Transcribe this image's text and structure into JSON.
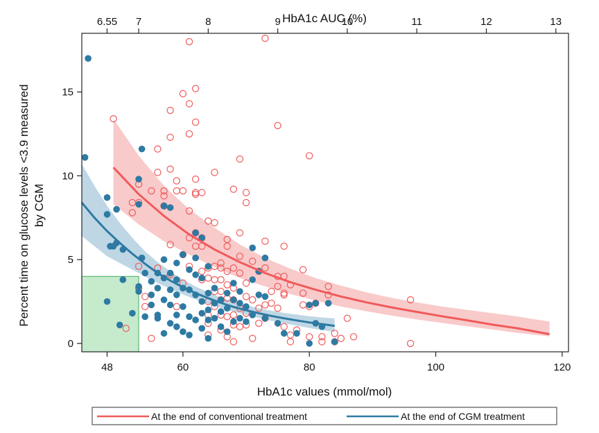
{
  "chart_data": {
    "type": "scatter",
    "title": "",
    "xlabel": "HbA1c values (mmol/mol)",
    "ylabel": [
      "Percent time on glucose levels <3.9 measured",
      "by CGM"
    ],
    "top_xlabel": "HbA1c AUC (%)",
    "xlim": [
      44,
      121
    ],
    "ylim": [
      -0.5,
      18.5
    ],
    "xticks": [
      48,
      60,
      80,
      100,
      120
    ],
    "yticks": [
      0,
      5,
      10,
      15
    ],
    "top_ticks": [
      {
        "label": "6.55",
        "x": 48
      },
      {
        "label": "7",
        "x": 53
      },
      {
        "label": "8",
        "x": 64
      },
      {
        "label": "9",
        "x": 75
      },
      {
        "label": "10",
        "x": 86
      },
      {
        "label": "11",
        "x": 97
      },
      {
        "label": "12",
        "x": 108
      },
      {
        "label": "13",
        "x": 119
      }
    ],
    "target_region": {
      "x": [
        44,
        53
      ],
      "y": [
        -0.5,
        4
      ],
      "color": "#9fdcaa"
    },
    "colors": {
      "conventional": "#f05a5a",
      "cgm": "#2e7aa3",
      "conventional_band": "#f5b8b8",
      "cgm_band": "#a9c9dc"
    },
    "series": [
      {
        "name": "At the end of conventional treatment",
        "marker": "open-circle",
        "fit": {
          "x": [
            49,
            53,
            57,
            61,
            65,
            69,
            73,
            77,
            81,
            85,
            89,
            93,
            97,
            101,
            105,
            109,
            113,
            118
          ],
          "y": [
            10.5,
            8.9,
            7.6,
            6.5,
            5.6,
            4.85,
            4.2,
            3.65,
            3.2,
            2.8,
            2.45,
            2.15,
            1.88,
            1.62,
            1.38,
            1.12,
            0.9,
            0.55
          ]
        },
        "band_upper": [
          13.4,
          11.2,
          9.4,
          8.0,
          6.9,
          5.9,
          5.1,
          4.45,
          3.9,
          3.45,
          3.05,
          2.72,
          2.45,
          2.2,
          2.0,
          1.8,
          1.6,
          1.3
        ],
        "band_lower": [
          8.3,
          7.1,
          6.1,
          5.3,
          4.55,
          3.9,
          3.4,
          2.95,
          2.55,
          2.2,
          1.92,
          1.66,
          1.43,
          1.22,
          1.02,
          0.83,
          0.62,
          0.42
        ],
        "points": [
          [
            49,
            13.4
          ],
          [
            51,
            0.9
          ],
          [
            52,
            7.8
          ],
          [
            52,
            8.4
          ],
          [
            53,
            9.5
          ],
          [
            53,
            8.4
          ],
          [
            53,
            4.6
          ],
          [
            53,
            3.3
          ],
          [
            54,
            2.8
          ],
          [
            54,
            2.2
          ],
          [
            55,
            9.1
          ],
          [
            55,
            0.3
          ],
          [
            56,
            11.6
          ],
          [
            56,
            10.2
          ],
          [
            56,
            4.5
          ],
          [
            57,
            8.8
          ],
          [
            57,
            9.1
          ],
          [
            57,
            8.2
          ],
          [
            58,
            13.9
          ],
          [
            58,
            12.3
          ],
          [
            58,
            10.4
          ],
          [
            58,
            5.9
          ],
          [
            58,
            4.1
          ],
          [
            59,
            9.7
          ],
          [
            59,
            9.1
          ],
          [
            59,
            2.2
          ],
          [
            60,
            14.9
          ],
          [
            60,
            9.1
          ],
          [
            60,
            5.3
          ],
          [
            60,
            3.6
          ],
          [
            61,
            18.0
          ],
          [
            61,
            14.3
          ],
          [
            61,
            12.5
          ],
          [
            61,
            7.9
          ],
          [
            61,
            6.3
          ],
          [
            61,
            4.6
          ],
          [
            62,
            15.2
          ],
          [
            62,
            13.2
          ],
          [
            62,
            9.8
          ],
          [
            62,
            9.0
          ],
          [
            62,
            8.9
          ],
          [
            62,
            6.6
          ],
          [
            62,
            5.8
          ],
          [
            63,
            9.0
          ],
          [
            63,
            6.3
          ],
          [
            63,
            5.8
          ],
          [
            63,
            4.3
          ],
          [
            63,
            3.8
          ],
          [
            64,
            7.3
          ],
          [
            64,
            4.5
          ],
          [
            64,
            3.9
          ],
          [
            64,
            2.5
          ],
          [
            64,
            1.7
          ],
          [
            64,
            1.2
          ],
          [
            64,
            0.5
          ],
          [
            65,
            10.2
          ],
          [
            65,
            7.2
          ],
          [
            65,
            4.6
          ],
          [
            65,
            3.8
          ],
          [
            65,
            3.1
          ],
          [
            65,
            2.2
          ],
          [
            66,
            4.8
          ],
          [
            66,
            4.5
          ],
          [
            66,
            3.8
          ],
          [
            66,
            3.1
          ],
          [
            66,
            2.6
          ],
          [
            66,
            1.7
          ],
          [
            66,
            0.8
          ],
          [
            67,
            6.2
          ],
          [
            67,
            5.8
          ],
          [
            67,
            4.3
          ],
          [
            67,
            3.5
          ],
          [
            67,
            2.7
          ],
          [
            67,
            1.6
          ],
          [
            67,
            0.4
          ],
          [
            68,
            9.2
          ],
          [
            68,
            4.5
          ],
          [
            68,
            3.3
          ],
          [
            68,
            2.6
          ],
          [
            68,
            1.7
          ],
          [
            68,
            1.1
          ],
          [
            68,
            0.1
          ],
          [
            69,
            11.0
          ],
          [
            69,
            6.6
          ],
          [
            69,
            5.2
          ],
          [
            69,
            4.2
          ],
          [
            69,
            2.1
          ],
          [
            69,
            1.0
          ],
          [
            70,
            9.0
          ],
          [
            70,
            8.4
          ],
          [
            70,
            3.6
          ],
          [
            70,
            2.8
          ],
          [
            70,
            1.8
          ],
          [
            70,
            1.1
          ],
          [
            71,
            4.9
          ],
          [
            71,
            2.6
          ],
          [
            71,
            0.3
          ],
          [
            72,
            4.3
          ],
          [
            72,
            2.1
          ],
          [
            72,
            1.2
          ],
          [
            73,
            18.2
          ],
          [
            73,
            6.1
          ],
          [
            73,
            4.5
          ],
          [
            73,
            2.3
          ],
          [
            73,
            1.5
          ],
          [
            74,
            3.1
          ],
          [
            74,
            2.4
          ],
          [
            75,
            13.0
          ],
          [
            75,
            4.0
          ],
          [
            75,
            3.4
          ],
          [
            75,
            2.1
          ],
          [
            76,
            5.8
          ],
          [
            76,
            4.0
          ],
          [
            76,
            3.0
          ],
          [
            76,
            2.9
          ],
          [
            76,
            1.0
          ],
          [
            77,
            3.5
          ],
          [
            77,
            0.5
          ],
          [
            77,
            0.1
          ],
          [
            78,
            0.8
          ],
          [
            79,
            4.4
          ],
          [
            79,
            3.0
          ],
          [
            79,
            2.3
          ],
          [
            80,
            11.2
          ],
          [
            80,
            2.2
          ],
          [
            80,
            0.4
          ],
          [
            81,
            2.4
          ],
          [
            82,
            0.4
          ],
          [
            82,
            0.1
          ],
          [
            83,
            3.4
          ],
          [
            83,
            2.9
          ],
          [
            84,
            0.6
          ],
          [
            84,
            0.1
          ],
          [
            85,
            0.3
          ],
          [
            86,
            1.5
          ],
          [
            87,
            0.4
          ],
          [
            96,
            2.6
          ],
          [
            96,
            0.0
          ]
        ]
      },
      {
        "name": "At the end of CGM treatment",
        "marker": "filled-circle",
        "fit": {
          "x": [
            44,
            46,
            48,
            50,
            52,
            54,
            56,
            58,
            60,
            62,
            64,
            66,
            68,
            70,
            72,
            74,
            76,
            78,
            80,
            82,
            84
          ],
          "y": [
            8.4,
            7.5,
            6.7,
            6.0,
            5.35,
            4.75,
            4.2,
            3.75,
            3.35,
            3.0,
            2.7,
            2.42,
            2.18,
            1.98,
            1.8,
            1.64,
            1.5,
            1.37,
            1.25,
            1.15,
            1.05
          ]
        },
        "band_upper": [
          10.7,
          9.4,
          8.2,
          7.2,
          6.3,
          5.5,
          4.85,
          4.3,
          3.8,
          3.4,
          3.05,
          2.75,
          2.5,
          2.28,
          2.1,
          1.95,
          1.82,
          1.72,
          1.62,
          1.55,
          1.5
        ],
        "band_lower": [
          6.4,
          5.8,
          5.2,
          4.8,
          4.4,
          4.0,
          3.6,
          3.25,
          2.92,
          2.62,
          2.36,
          2.12,
          1.9,
          1.7,
          1.52,
          1.36,
          1.2,
          1.06,
          0.92,
          0.8,
          0.68
        ],
        "points": [
          [
            44.5,
            11.1
          ],
          [
            45,
            17.0
          ],
          [
            48,
            8.7
          ],
          [
            48,
            7.7
          ],
          [
            48,
            2.5
          ],
          [
            48.5,
            5.8
          ],
          [
            49,
            5.8
          ],
          [
            49.5,
            6.0
          ],
          [
            49.5,
            8.0
          ],
          [
            50,
            1.1
          ],
          [
            50.5,
            5.6
          ],
          [
            50.5,
            3.8
          ],
          [
            52,
            1.8
          ],
          [
            53,
            9.8
          ],
          [
            53,
            8.3
          ],
          [
            53,
            3.4
          ],
          [
            53,
            3.1
          ],
          [
            53.5,
            11.6
          ],
          [
            53.5,
            5.1
          ],
          [
            54,
            4.2
          ],
          [
            54,
            1.6
          ],
          [
            55,
            3.7
          ],
          [
            55,
            2.9
          ],
          [
            55,
            2.3
          ],
          [
            56,
            4.2
          ],
          [
            56,
            3.3
          ],
          [
            56,
            1.7
          ],
          [
            56,
            1.5
          ],
          [
            57,
            8.2
          ],
          [
            57,
            5.0
          ],
          [
            57,
            3.9
          ],
          [
            57,
            2.6
          ],
          [
            57,
            0.6
          ],
          [
            58,
            8.1
          ],
          [
            58,
            4.2
          ],
          [
            58,
            3.2
          ],
          [
            58,
            2.3
          ],
          [
            58,
            1.2
          ],
          [
            59,
            4.8
          ],
          [
            59,
            3.8
          ],
          [
            59,
            2.9
          ],
          [
            59,
            1.7
          ],
          [
            59,
            1.0
          ],
          [
            60,
            5.3
          ],
          [
            60,
            3.3
          ],
          [
            60,
            2.2
          ],
          [
            60,
            0.7
          ],
          [
            61,
            4.4
          ],
          [
            61,
            3.2
          ],
          [
            61,
            1.6
          ],
          [
            61,
            0.5
          ],
          [
            62,
            6.6
          ],
          [
            62,
            5.1
          ],
          [
            62,
            4.1
          ],
          [
            62,
            2.9
          ],
          [
            62,
            1.4
          ],
          [
            63,
            6.3
          ],
          [
            63,
            3.9
          ],
          [
            63,
            2.5
          ],
          [
            63,
            1.8
          ],
          [
            63,
            0.9
          ],
          [
            64,
            4.6
          ],
          [
            64,
            3.0
          ],
          [
            64,
            2.0
          ],
          [
            64,
            1.4
          ],
          [
            64,
            0.3
          ],
          [
            65,
            3.3
          ],
          [
            65,
            2.4
          ],
          [
            65,
            1.5
          ],
          [
            66,
            2.6
          ],
          [
            66,
            1.9
          ],
          [
            66,
            1.0
          ],
          [
            67,
            3.0
          ],
          [
            67,
            2.1
          ],
          [
            67,
            0.7
          ],
          [
            68,
            3.6
          ],
          [
            68,
            2.6
          ],
          [
            68,
            1.3
          ],
          [
            69,
            3.1
          ],
          [
            69,
            2.4
          ],
          [
            69,
            1.5
          ],
          [
            70,
            2.2
          ],
          [
            70,
            1.3
          ],
          [
            71,
            5.7
          ],
          [
            71,
            3.8
          ],
          [
            71,
            1.7
          ],
          [
            72,
            4.3
          ],
          [
            72,
            2.9
          ],
          [
            73,
            5.1
          ],
          [
            73,
            2.8
          ],
          [
            73,
            1.5
          ],
          [
            75,
            1.2
          ],
          [
            76,
            0.6
          ],
          [
            78,
            0.6
          ],
          [
            80,
            2.3
          ],
          [
            80,
            0.0
          ],
          [
            81,
            2.4
          ],
          [
            81,
            1.2
          ],
          [
            82,
            1.0
          ],
          [
            83,
            2.4
          ],
          [
            84,
            0.1
          ]
        ]
      }
    ]
  }
}
